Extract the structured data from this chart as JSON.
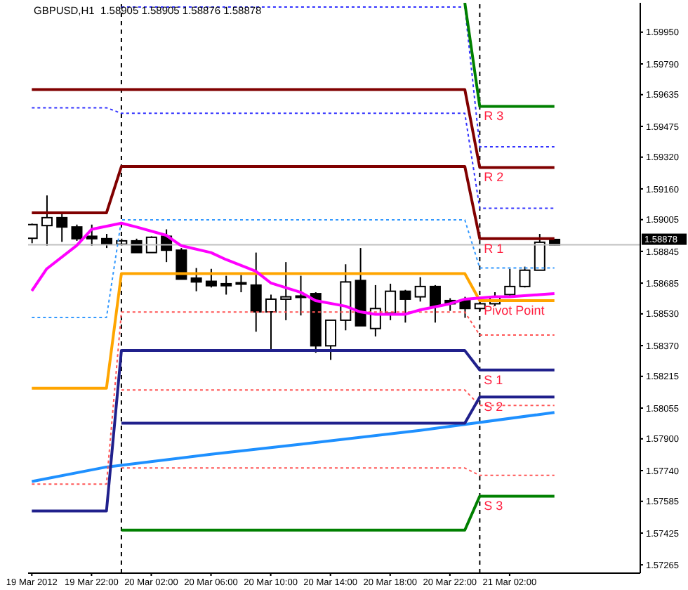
{
  "chart_data": {
    "type": "candlestick",
    "title": "GBPUSD,H1",
    "subtitle": "1.58905 1.58905 1.58876 1.58878",
    "color": "#000000",
    "x": [
      "2012-03-19T18:00",
      "2012-03-19T19:00",
      "2012-03-19T20:00",
      "2012-03-19T21:00",
      "2012-03-19T22:00",
      "2012-03-19T23:00",
      "2012-03-20T00:00",
      "2012-03-20T01:00",
      "2012-03-20T02:00",
      "2012-03-20T03:00",
      "2012-03-20T04:00",
      "2012-03-20T05:00",
      "2012-03-20T06:00",
      "2012-03-20T07:00",
      "2012-03-20T08:00",
      "2012-03-20T09:00",
      "2012-03-20T10:00",
      "2012-03-20T11:00",
      "2012-03-20T12:00",
      "2012-03-20T13:00",
      "2012-03-20T14:00",
      "2012-03-20T15:00",
      "2012-03-20T16:00",
      "2012-03-20T17:00",
      "2012-03-20T18:00",
      "2012-03-20T19:00",
      "2012-03-20T20:00",
      "2012-03-20T21:00",
      "2012-03-20T22:00",
      "2012-03-20T23:00",
      "2012-03-21T00:00",
      "2012-03-21T01:00",
      "2012-03-21T02:00",
      "2012-03-21T03:00",
      "2012-03-21T04:00",
      "2012-03-21T05:00"
    ],
    "ohlc": [
      [
        1.58911,
        1.58985,
        1.58886,
        1.5898
      ],
      [
        1.58975,
        1.59127,
        1.58874,
        1.59015
      ],
      [
        1.59015,
        1.59039,
        1.58893,
        1.58968
      ],
      [
        1.58968,
        1.5898,
        1.58898,
        1.58909
      ],
      [
        1.58921,
        1.5898,
        1.58874,
        1.58909
      ],
      [
        1.58909,
        1.58933,
        1.58862,
        1.58881
      ],
      [
        1.58881,
        1.58909,
        1.58874,
        1.58898
      ],
      [
        1.58898,
        1.58909,
        1.58839,
        1.58839
      ],
      [
        1.58839,
        1.58921,
        1.58839,
        1.58916
      ],
      [
        1.58921,
        1.58956,
        1.58791,
        1.58851
      ],
      [
        1.58851,
        1.58862,
        1.58705,
        1.58705
      ],
      [
        1.5871,
        1.58761,
        1.58644,
        1.58691
      ],
      [
        1.58694,
        1.58757,
        1.58663,
        1.58672
      ],
      [
        1.58682,
        1.58722,
        1.58627,
        1.58672
      ],
      [
        1.58687,
        1.58726,
        1.58639,
        1.58682
      ],
      [
        1.58675,
        1.58839,
        1.5844,
        1.5854
      ],
      [
        1.5854,
        1.58627,
        1.58345,
        1.58604
      ],
      [
        1.58604,
        1.58791,
        1.58498,
        1.58616
      ],
      [
        1.5862,
        1.58722,
        1.58522,
        1.58616
      ],
      [
        1.58632,
        1.58639,
        1.58334,
        1.58369
      ],
      [
        1.58369,
        1.58498,
        1.58298,
        1.58498
      ],
      [
        1.58498,
        1.5878,
        1.58447,
        1.58691
      ],
      [
        1.58698,
        1.58862,
        1.5847,
        1.5847
      ],
      [
        1.58456,
        1.58675,
        1.58416,
        1.58557
      ],
      [
        1.58534,
        1.58682,
        1.58498,
        1.58644
      ],
      [
        1.58644,
        1.58651,
        1.58486,
        1.58604
      ],
      [
        1.58616,
        1.58715,
        1.58592,
        1.58668
      ],
      [
        1.58668,
        1.58675,
        1.58486,
        1.58569
      ],
      [
        1.58597,
        1.58609,
        1.58545,
        1.58581
      ],
      [
        1.58597,
        1.58616,
        1.5851,
        1.58557
      ],
      [
        1.58557,
        1.58594,
        1.58545,
        1.58581
      ],
      [
        1.58581,
        1.58639,
        1.58569,
        1.58616
      ],
      [
        1.58627,
        1.58757,
        1.58616,
        1.58668
      ],
      [
        1.58668,
        1.58768,
        1.58663,
        1.5875
      ],
      [
        1.5875,
        1.58933,
        1.5875,
        1.58891
      ],
      [
        1.58905,
        1.58905,
        1.58876,
        1.58878
      ]
    ],
    "series": [
      {
        "type": "line",
        "color": "#1e90ff",
        "line_style": "solid",
        "x": [
          "2012-03-19T18:00",
          "2012-03-19T23:00",
          "2012-03-20T06:00",
          "2012-03-20T12:00",
          "2012-03-20T20:00",
          "2012-03-21T05:00"
        ],
        "values": [
          1.57685,
          1.57758,
          1.57822,
          1.57873,
          1.57943,
          1.58033
        ]
      },
      {
        "type": "line",
        "color": "#3333ff",
        "line_style": "dotted",
        "x": [
          "2012-03-20T00:00",
          "2012-03-20T23:00",
          "2012-03-21T00:00",
          "2012-03-21T05:00"
        ],
        "values": [
          1.60077,
          1.60077,
          1.59372,
          1.59372
        ]
      },
      {
        "type": "line",
        "color": "#3333ff",
        "line_style": "dotted",
        "x": [
          "2012-03-19T18:00",
          "2012-03-19T23:00",
          "2012-03-20T00:00",
          "2012-03-20T23:00",
          "2012-03-21T00:00",
          "2012-03-21T05:00"
        ],
        "values": [
          1.59569,
          1.59569,
          1.59541,
          1.59541,
          1.59062,
          1.59062
        ]
      },
      {
        "type": "line",
        "color": "#3399ff",
        "line_style": "dotted",
        "x": [
          "2012-03-19T18:00",
          "2012-03-19T23:00",
          "2012-03-20T00:00",
          "2012-03-20T23:00",
          "2012-03-21T00:00",
          "2012-03-21T05:00"
        ],
        "values": [
          1.58512,
          1.58512,
          1.59004,
          1.59004,
          1.58761,
          1.58761
        ]
      },
      {
        "type": "line",
        "color": "#ff5555",
        "line_style": "dotted",
        "x": [
          "2012-03-19T18:00",
          "2012-03-19T23:00",
          "2012-03-20T00:00",
          "2012-03-20T23:00",
          "2012-03-21T00:00",
          "2012-03-21T05:00"
        ],
        "values": [
          1.57672,
          1.57672,
          1.58539,
          1.58539,
          1.58423,
          1.58423
        ]
      },
      {
        "type": "line",
        "color": "#ff5555",
        "line_style": "dotted",
        "x": [
          "2012-03-20T00:00",
          "2012-03-20T23:00",
          "2012-03-21T00:00",
          "2012-03-21T05:00"
        ],
        "values": [
          1.58146,
          1.58146,
          1.58068,
          1.58068
        ]
      },
      {
        "type": "line",
        "color": "#ff5555",
        "line_style": "dotted",
        "x": [
          "2012-03-20T00:00",
          "2012-03-20T23:00",
          "2012-03-21T00:00",
          "2012-03-21T05:00"
        ],
        "values": [
          1.57753,
          1.57753,
          1.57716,
          1.57716
        ]
      },
      {
        "type": "line",
        "name": "R 3",
        "color": "#008000",
        "line_style": "solid",
        "x": [
          "2012-03-20T23:00",
          "2012-03-21T00:00",
          "2012-03-21T05:00"
        ],
        "values": [
          1.60098,
          1.59576,
          1.59576
        ]
      },
      {
        "type": "line",
        "name": "R 2",
        "color": "#800000",
        "line_style": "solid",
        "x": [
          "2012-03-19T18:00",
          "2012-03-20T23:00",
          "2012-03-21T00:00",
          "2012-03-21T05:00"
        ],
        "values": [
          1.59661,
          1.59661,
          1.59268,
          1.59268
        ]
      },
      {
        "type": "line",
        "name": "R 1",
        "color": "#800000",
        "line_style": "solid",
        "x": [
          "2012-03-19T18:00",
          "2012-03-19T23:00",
          "2012-03-20T00:00",
          "2012-03-20T23:00",
          "2012-03-21T00:00",
          "2012-03-21T05:00"
        ],
        "values": [
          1.59039,
          1.59039,
          1.59273,
          1.59273,
          1.58909,
          1.58909
        ]
      },
      {
        "type": "line",
        "name": "Pivot Point",
        "color": "#ffa500",
        "line_style": "solid",
        "x": [
          "2012-03-19T18:00",
          "2012-03-19T23:00",
          "2012-03-20T00:00",
          "2012-03-20T23:00",
          "2012-03-21T00:00",
          "2012-03-21T05:00"
        ],
        "values": [
          1.58155,
          1.58155,
          1.58733,
          1.58733,
          1.58597,
          1.58597
        ]
      },
      {
        "type": "line",
        "name": "S 1",
        "color": "#20208c",
        "line_style": "solid",
        "x": [
          "2012-03-19T18:00",
          "2012-03-19T23:00",
          "2012-03-20T00:00",
          "2012-03-20T23:00",
          "2012-03-21T00:00",
          "2012-03-21T05:00"
        ],
        "values": [
          1.57536,
          1.57536,
          1.58345,
          1.58345,
          1.58247,
          1.58247
        ]
      },
      {
        "type": "line",
        "name": "S 2",
        "color": "#20208c",
        "line_style": "solid",
        "x": [
          "2012-03-20T00:00",
          "2012-03-20T23:00",
          "2012-03-21T00:00",
          "2012-03-21T05:00"
        ],
        "values": [
          1.57979,
          1.57979,
          1.58111,
          1.58111
        ]
      },
      {
        "type": "line",
        "name": "S 3",
        "color": "#008000",
        "line_style": "solid",
        "x": [
          "2012-03-20T00:00",
          "2012-03-20T23:00",
          "2012-03-21T00:00",
          "2012-03-21T05:00"
        ],
        "values": [
          1.5744,
          1.5744,
          1.57611,
          1.57611
        ]
      },
      {
        "type": "line",
        "color": "#ff00ff",
        "line_style": "solid",
        "x": [
          "2012-03-19T18:00",
          "2012-03-19T19:00",
          "2012-03-19T21:00",
          "2012-03-19T22:00",
          "2012-03-20T00:00",
          "2012-03-20T01:00",
          "2012-03-20T03:00",
          "2012-03-20T04:00",
          "2012-03-20T06:00",
          "2012-03-20T07:00",
          "2012-03-20T09:00",
          "2012-03-20T10:00",
          "2012-03-20T12:00",
          "2012-03-20T13:00",
          "2012-03-20T15:00",
          "2012-03-20T16:00",
          "2012-03-20T17:00",
          "2012-03-20T19:00",
          "2012-03-20T20:00",
          "2012-03-20T22:00",
          "2012-03-20T23:00",
          "2012-03-21T01:00",
          "2012-03-21T02:00",
          "2012-03-21T04:00",
          "2012-03-21T05:00"
        ],
        "values": [
          1.58646,
          1.58757,
          1.58874,
          1.58956,
          1.58987,
          1.58968,
          1.58926,
          1.58874,
          1.58839,
          1.58804,
          1.58745,
          1.58686,
          1.58639,
          1.58597,
          1.58569,
          1.5854,
          1.58528,
          1.58528,
          1.5855,
          1.58581,
          1.58604,
          1.58616,
          1.58616,
          1.58627,
          1.58632
        ]
      }
    ],
    "ref_lines": [
      {
        "axis": "x",
        "value": "2012-03-20T00:00",
        "color": "#000000",
        "line_style": "dashed"
      },
      {
        "axis": "x",
        "value": "2012-03-21T00:00",
        "color": "#000000",
        "line_style": "dashed"
      },
      {
        "axis": "y",
        "value": 1.58878,
        "label": "1.58878",
        "color": "#c0c0c0",
        "line_style": "solid"
      }
    ],
    "xlim": [
      "2012-03-19T17:45",
      "2012-03-21T10:45"
    ],
    "xticks": [
      {
        "value": "2012-03-19T18:00",
        "label": "19 Mar 2012"
      },
      {
        "value": "2012-03-19T22:00",
        "label": "19 Mar 22:00"
      },
      {
        "value": "2012-03-20T02:00",
        "label": "20 Mar 02:00"
      },
      {
        "value": "2012-03-20T06:00",
        "label": "20 Mar 06:00"
      },
      {
        "value": "2012-03-20T10:00",
        "label": "20 Mar 10:00"
      },
      {
        "value": "2012-03-20T14:00",
        "label": "20 Mar 14:00"
      },
      {
        "value": "2012-03-20T18:00",
        "label": "20 Mar 18:00"
      },
      {
        "value": "2012-03-20T22:00",
        "label": "20 Mar 22:00"
      },
      {
        "value": "2012-03-21T02:00",
        "label": "21 Mar 02:00"
      }
    ],
    "ylim": [
      1.57223,
      1.60098
    ],
    "yticks": [
      {
        "value": 1.5995,
        "label": "1.59950"
      },
      {
        "value": 1.5979,
        "label": "1.59790"
      },
      1.59635,
      1.59475,
      {
        "value": 1.5932,
        "label": "1.59320"
      },
      {
        "value": 1.5916,
        "label": "1.59160"
      },
      1.59005,
      1.58845,
      1.58685,
      {
        "value": 1.5853,
        "label": "1.58530"
      },
      {
        "value": 1.5837,
        "label": "1.58370"
      },
      1.58215,
      1.58055,
      {
        "value": 1.579,
        "label": "1.57900"
      },
      {
        "value": 1.5774,
        "label": "1.57740"
      },
      1.57585,
      1.57425,
      1.57265
    ]
  }
}
